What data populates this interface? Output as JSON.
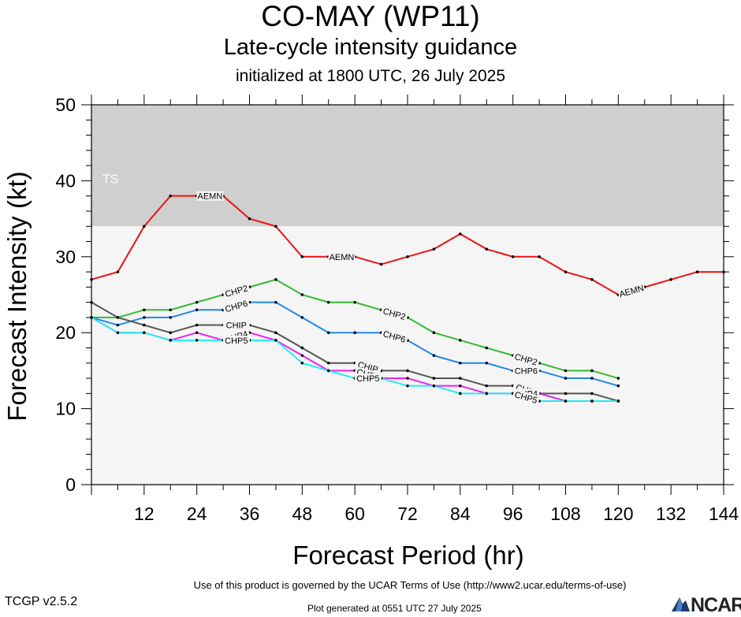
{
  "header": {
    "title": "CO-MAY (WP11)",
    "subtitle": "Late-cycle intensity guidance",
    "initialized": "initialized at 1800 UTC, 26 July 2025"
  },
  "footer": {
    "terms": "Use of this product is governed by the UCAR Terms of Use (http://www2.ucar.edu/terms-of-use)",
    "version": "TCGP v2.5.2",
    "generated": "Plot generated at 0551 UTC   27 July 2025",
    "logo_text": "NCAR"
  },
  "chart_data": {
    "type": "line",
    "title": "CO-MAY (WP11)",
    "xlabel": "Forecast Period (hr)",
    "ylabel": "Forecast Intensity (kt)",
    "xlim": [
      0,
      144
    ],
    "ylim": [
      0,
      50
    ],
    "x_ticks": [
      12,
      24,
      36,
      48,
      60,
      72,
      84,
      96,
      108,
      120,
      132,
      144
    ],
    "y_ticks": [
      0,
      10,
      20,
      30,
      40,
      50
    ],
    "bands": [
      {
        "name": "TS",
        "from": 34,
        "to": 50,
        "color": "#cfcfcf"
      },
      {
        "name": "",
        "from": 0,
        "to": 34,
        "color": "#f5f5f5"
      }
    ],
    "series": [
      {
        "name": "AEMN",
        "color": "#ee1111",
        "label_x": [
          24,
          54,
          120
        ],
        "x": [
          0,
          6,
          12,
          18,
          24,
          30,
          36,
          42,
          48,
          54,
          60,
          66,
          72,
          78,
          84,
          90,
          96,
          102,
          108,
          114,
          120,
          126,
          132,
          138,
          144
        ],
        "y": [
          27,
          28,
          34,
          38,
          38,
          38,
          35,
          34,
          30,
          30,
          30,
          29,
          30,
          31,
          33,
          31,
          30,
          30,
          28,
          27,
          25,
          26,
          27,
          28,
          28
        ]
      },
      {
        "name": "CHP2",
        "color": "#33bb33",
        "label_x": [
          30,
          66,
          96
        ],
        "x": [
          0,
          6,
          12,
          18,
          24,
          30,
          36,
          42,
          48,
          54,
          60,
          66,
          72,
          78,
          84,
          90,
          96,
          102,
          108,
          114,
          120
        ],
        "y": [
          22,
          22,
          23,
          23,
          24,
          25,
          26,
          27,
          25,
          24,
          24,
          23,
          22,
          20,
          19,
          18,
          17,
          16,
          15,
          15,
          14
        ]
      },
      {
        "name": "CHP6",
        "color": "#2288ee",
        "label_x": [
          30,
          66,
          96
        ],
        "x": [
          0,
          6,
          12,
          18,
          24,
          30,
          36,
          42,
          48,
          54,
          60,
          66,
          72,
          78,
          84,
          90,
          96,
          102,
          108,
          114,
          120
        ],
        "y": [
          22,
          21,
          22,
          22,
          23,
          23,
          24,
          24,
          22,
          20,
          20,
          20,
          19,
          17,
          16,
          16,
          15,
          15,
          14,
          14,
          13
        ]
      },
      {
        "name": "CHIP",
        "color": "#555555",
        "label_x": [
          30,
          60,
          96
        ],
        "x": [
          0,
          6,
          12,
          18,
          24,
          30,
          36,
          42,
          48,
          54,
          60,
          66,
          72,
          78,
          84,
          90,
          96,
          102,
          108,
          114,
          120
        ],
        "y": [
          24,
          22,
          21,
          20,
          21,
          21,
          21,
          20,
          18,
          16,
          16,
          15,
          15,
          14,
          14,
          13,
          13,
          12,
          12,
          12,
          11
        ]
      },
      {
        "name": "CHP4",
        "color": "#ee22ee",
        "label_x": [
          30,
          60,
          96
        ],
        "x": [
          0,
          6,
          12,
          18,
          24,
          30,
          36,
          42,
          48,
          54,
          60,
          66,
          72,
          78,
          84,
          90,
          96,
          102,
          108,
          114,
          120
        ],
        "y": [
          22,
          20,
          20,
          19,
          20,
          19,
          20,
          19,
          17,
          15,
          15,
          14,
          14,
          13,
          13,
          12,
          12,
          12,
          11,
          11,
          11
        ]
      },
      {
        "name": "CHP5",
        "color": "#22eeee",
        "label_x": [
          30,
          60,
          96
        ],
        "x": [
          0,
          6,
          12,
          18,
          24,
          30,
          36,
          42,
          48,
          54,
          60,
          66,
          72,
          78,
          84,
          90,
          96,
          102,
          108,
          114,
          120
        ],
        "y": [
          22,
          20,
          20,
          19,
          19,
          19,
          19,
          19,
          16,
          15,
          14,
          14,
          13,
          13,
          12,
          12,
          12,
          11,
          11,
          11,
          11
        ]
      }
    ]
  }
}
